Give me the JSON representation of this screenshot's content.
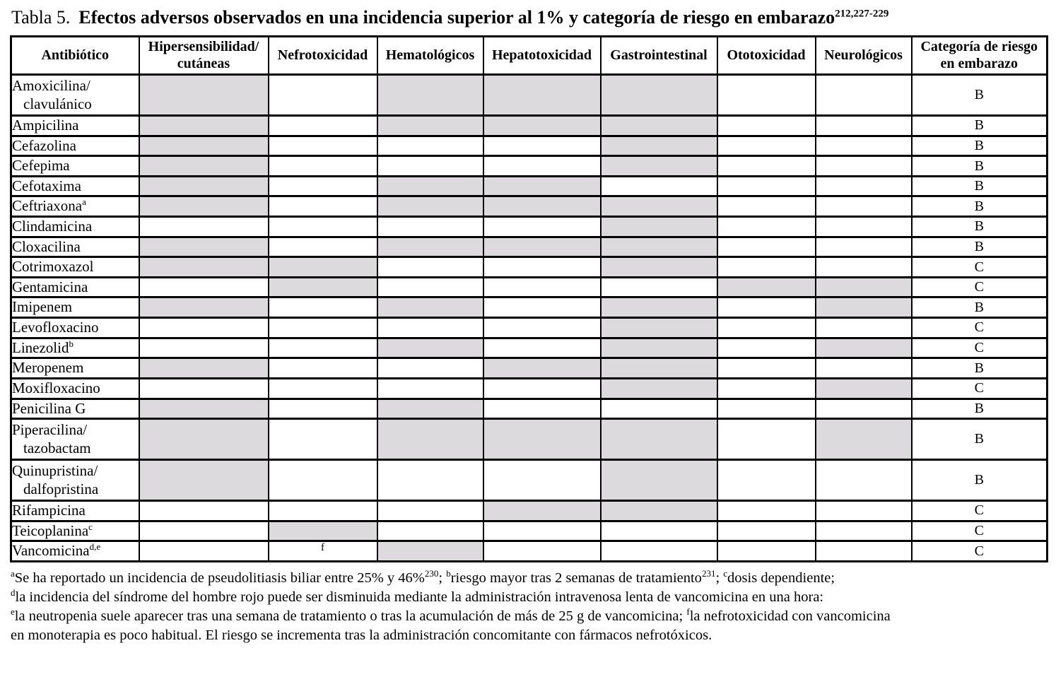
{
  "title": {
    "label": "Tabla 5.",
    "text": "Efectos adversos observados en una incidencia superior al 1% y categoría de riesgo en embarazo",
    "citation": "212,227-229"
  },
  "colors": {
    "shaded_cell": "#dcdadd",
    "border": "#000000",
    "background": "#ffffff"
  },
  "table": {
    "columns": [
      {
        "key": "antibiotico",
        "label": "Antibiótico"
      },
      {
        "key": "hipersensibilidad-cutaneas",
        "label": "Hipersensibilidad/\ncutáneas"
      },
      {
        "key": "nefrotoxicidad",
        "label": "Nefrotoxicidad"
      },
      {
        "key": "hematologicos",
        "label": "Hematológicos"
      },
      {
        "key": "hepatotoxicidad",
        "label": "Hepatotoxicidad"
      },
      {
        "key": "gastrointestinal",
        "label": "Gastrointestinal"
      },
      {
        "key": "ototoxicidad",
        "label": "Ototoxicidad"
      },
      {
        "key": "neurologicos",
        "label": "Neurológicos"
      },
      {
        "key": "categoria-riesgo-embarazo",
        "label": "Categoría de riesgo\nen embarazo"
      }
    ],
    "rows": [
      {
        "name": "Amoxicilina/\nclavulánico",
        "sup": "",
        "effects": [
          1,
          0,
          1,
          1,
          1,
          0,
          0
        ],
        "category": "B"
      },
      {
        "name": "Ampicilina",
        "sup": "",
        "effects": [
          1,
          0,
          1,
          1,
          1,
          0,
          0
        ],
        "category": "B"
      },
      {
        "name": "Cefazolina",
        "sup": "",
        "effects": [
          1,
          0,
          0,
          0,
          1,
          0,
          0
        ],
        "category": "B"
      },
      {
        "name": "Cefepima",
        "sup": "",
        "effects": [
          1,
          0,
          0,
          0,
          1,
          0,
          0
        ],
        "category": "B"
      },
      {
        "name": "Cefotaxima",
        "sup": "",
        "effects": [
          1,
          0,
          1,
          1,
          0,
          0,
          0
        ],
        "category": "B"
      },
      {
        "name": "Ceftriaxona",
        "sup": "a",
        "effects": [
          1,
          0,
          1,
          1,
          1,
          0,
          0
        ],
        "category": "B"
      },
      {
        "name": "Clindamicina",
        "sup": "",
        "effects": [
          0,
          0,
          0,
          0,
          1,
          0,
          0
        ],
        "category": "B"
      },
      {
        "name": "Cloxacilina",
        "sup": "",
        "effects": [
          1,
          0,
          1,
          1,
          1,
          0,
          0
        ],
        "category": "B"
      },
      {
        "name": "Cotrimoxazol",
        "sup": "",
        "effects": [
          1,
          1,
          0,
          0,
          1,
          0,
          0
        ],
        "category": "C"
      },
      {
        "name": "Gentamicina",
        "sup": "",
        "effects": [
          0,
          1,
          0,
          0,
          0,
          1,
          1
        ],
        "category": "C"
      },
      {
        "name": "Imipenem",
        "sup": "",
        "effects": [
          1,
          0,
          1,
          0,
          1,
          0,
          1
        ],
        "category": "B"
      },
      {
        "name": "Levofloxacino",
        "sup": "",
        "effects": [
          0,
          0,
          0,
          0,
          1,
          0,
          0
        ],
        "category": "C"
      },
      {
        "name": "Linezolid",
        "sup": "b",
        "effects": [
          0,
          0,
          1,
          0,
          1,
          0,
          1
        ],
        "category": "C"
      },
      {
        "name": "Meropenem",
        "sup": "",
        "effects": [
          1,
          0,
          0,
          1,
          1,
          0,
          0
        ],
        "category": "B"
      },
      {
        "name": "Moxifloxacino",
        "sup": "",
        "effects": [
          0,
          0,
          0,
          0,
          1,
          0,
          1
        ],
        "category": "C"
      },
      {
        "name": "Penicilina G",
        "sup": "",
        "effects": [
          1,
          0,
          1,
          0,
          0,
          0,
          0
        ],
        "category": "B"
      },
      {
        "name": "Piperacilina/\ntazobactam",
        "sup": "",
        "effects": [
          1,
          0,
          1,
          1,
          1,
          0,
          1
        ],
        "category": "B"
      },
      {
        "name": "Quinupristina/\ndalfopristina",
        "sup": "",
        "effects": [
          1,
          0,
          0,
          0,
          1,
          0,
          0
        ],
        "category": "B"
      },
      {
        "name": "Rifampicina",
        "sup": "",
        "effects": [
          0,
          0,
          0,
          1,
          1,
          0,
          0
        ],
        "category": "C"
      },
      {
        "name": "Teicoplanina",
        "sup": "c",
        "effects": [
          0,
          1,
          0,
          0,
          0,
          0,
          0
        ],
        "category": "C"
      },
      {
        "name": "Vancomicina",
        "sup": "d,e",
        "effects": [
          0,
          0,
          1,
          0,
          0,
          0,
          0
        ],
        "category": "C",
        "note": {
          "col": 1,
          "text": "f"
        }
      }
    ]
  },
  "footnotes": [
    [
      {
        "s": "a"
      },
      {
        "t": "Se ha reportado un incidencia de pseudolitiasis biliar entre 25% y 46%"
      },
      {
        "s": "230"
      },
      {
        "t": "; "
      },
      {
        "s": "b"
      },
      {
        "t": "riesgo mayor tras 2 semanas de tratamiento"
      },
      {
        "s": "231"
      },
      {
        "t": "; "
      },
      {
        "s": "c"
      },
      {
        "t": "dosis dependiente;"
      }
    ],
    [
      {
        "s": "d"
      },
      {
        "t": "la incidencia del síndrome del hombre rojo puede ser disminuida mediante la administración intravenosa lenta de vancomicina en una hora:"
      }
    ],
    [
      {
        "s": "e"
      },
      {
        "t": "la neutropenia suele aparecer tras una semana de tratamiento o tras la acumulación de más de 25 g de vancomicina; "
      },
      {
        "s": "f"
      },
      {
        "t": "la nefrotoxicidad con vancomicina"
      }
    ],
    [
      {
        "t": "en monoterapia es poco habitual. El riesgo se incrementa tras la administración concomitante con fármacos nefrotóxicos."
      }
    ]
  ]
}
